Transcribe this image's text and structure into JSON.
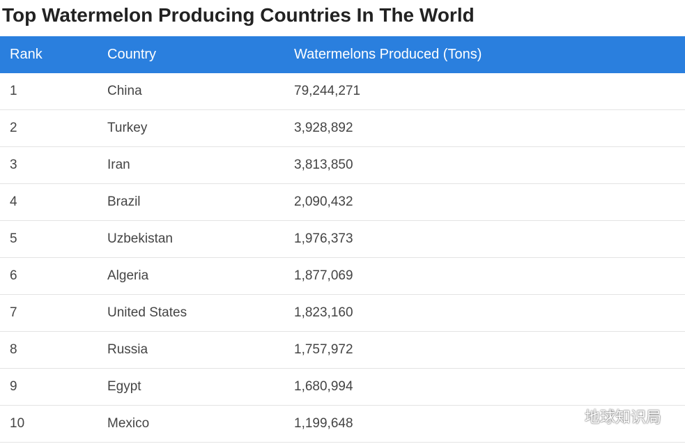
{
  "page": {
    "title": "Top Watermelon Producing Countries In The World"
  },
  "table": {
    "headers": {
      "rank": "Rank",
      "country": "Country",
      "value": "Watermelons Produced (Tons)"
    },
    "rows": [
      {
        "rank": "1",
        "country": "China",
        "value": "79,244,271"
      },
      {
        "rank": "2",
        "country": "Turkey",
        "value": "3,928,892"
      },
      {
        "rank": "3",
        "country": "Iran",
        "value": "3,813,850"
      },
      {
        "rank": "4",
        "country": "Brazil",
        "value": "2,090,432"
      },
      {
        "rank": "5",
        "country": "Uzbekistan",
        "value": "1,976,373"
      },
      {
        "rank": "6",
        "country": "Algeria",
        "value": "1,877,069"
      },
      {
        "rank": "7",
        "country": "United States",
        "value": "1,823,160"
      },
      {
        "rank": "8",
        "country": "Russia",
        "value": "1,757,972"
      },
      {
        "rank": "9",
        "country": "Egypt",
        "value": "1,680,994"
      },
      {
        "rank": "10",
        "country": "Mexico",
        "value": "1,199,648"
      }
    ]
  },
  "watermark": {
    "text": "地球知识局",
    "icon": "chat-bubble-icon"
  },
  "colors": {
    "header_background": "#2a7fde",
    "header_text": "#ffffff",
    "row_divider": "#e3e3e3"
  }
}
